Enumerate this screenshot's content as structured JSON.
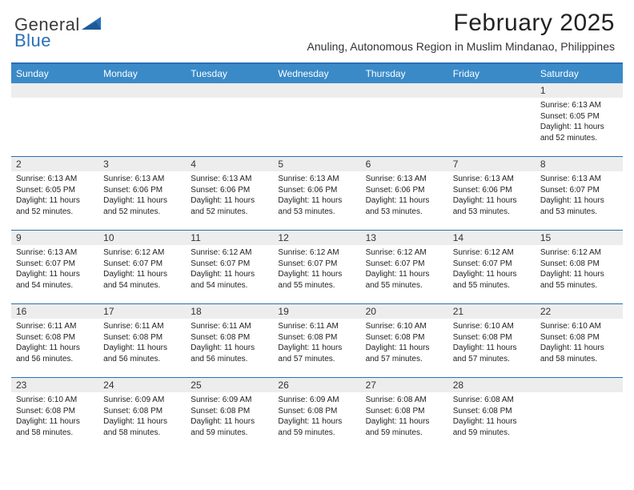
{
  "brand": {
    "part1": "General",
    "part2": "Blue"
  },
  "title": "February 2025",
  "subtitle": "Anuling, Autonomous Region in Muslim Mindanao, Philippines",
  "colors": {
    "header_bar": "#3a8ac8",
    "accent": "#2a6fb5",
    "day_strip": "#ededed",
    "text": "#222222"
  },
  "weekdays": [
    "Sunday",
    "Monday",
    "Tuesday",
    "Wednesday",
    "Thursday",
    "Friday",
    "Saturday"
  ],
  "weeks": [
    [
      null,
      null,
      null,
      null,
      null,
      null,
      {
        "n": "1",
        "sunrise": "Sunrise: 6:13 AM",
        "sunset": "Sunset: 6:05 PM",
        "daylight": "Daylight: 11 hours and 52 minutes."
      }
    ],
    [
      {
        "n": "2",
        "sunrise": "Sunrise: 6:13 AM",
        "sunset": "Sunset: 6:05 PM",
        "daylight": "Daylight: 11 hours and 52 minutes."
      },
      {
        "n": "3",
        "sunrise": "Sunrise: 6:13 AM",
        "sunset": "Sunset: 6:06 PM",
        "daylight": "Daylight: 11 hours and 52 minutes."
      },
      {
        "n": "4",
        "sunrise": "Sunrise: 6:13 AM",
        "sunset": "Sunset: 6:06 PM",
        "daylight": "Daylight: 11 hours and 52 minutes."
      },
      {
        "n": "5",
        "sunrise": "Sunrise: 6:13 AM",
        "sunset": "Sunset: 6:06 PM",
        "daylight": "Daylight: 11 hours and 53 minutes."
      },
      {
        "n": "6",
        "sunrise": "Sunrise: 6:13 AM",
        "sunset": "Sunset: 6:06 PM",
        "daylight": "Daylight: 11 hours and 53 minutes."
      },
      {
        "n": "7",
        "sunrise": "Sunrise: 6:13 AM",
        "sunset": "Sunset: 6:06 PM",
        "daylight": "Daylight: 11 hours and 53 minutes."
      },
      {
        "n": "8",
        "sunrise": "Sunrise: 6:13 AM",
        "sunset": "Sunset: 6:07 PM",
        "daylight": "Daylight: 11 hours and 53 minutes."
      }
    ],
    [
      {
        "n": "9",
        "sunrise": "Sunrise: 6:13 AM",
        "sunset": "Sunset: 6:07 PM",
        "daylight": "Daylight: 11 hours and 54 minutes."
      },
      {
        "n": "10",
        "sunrise": "Sunrise: 6:12 AM",
        "sunset": "Sunset: 6:07 PM",
        "daylight": "Daylight: 11 hours and 54 minutes."
      },
      {
        "n": "11",
        "sunrise": "Sunrise: 6:12 AM",
        "sunset": "Sunset: 6:07 PM",
        "daylight": "Daylight: 11 hours and 54 minutes."
      },
      {
        "n": "12",
        "sunrise": "Sunrise: 6:12 AM",
        "sunset": "Sunset: 6:07 PM",
        "daylight": "Daylight: 11 hours and 55 minutes."
      },
      {
        "n": "13",
        "sunrise": "Sunrise: 6:12 AM",
        "sunset": "Sunset: 6:07 PM",
        "daylight": "Daylight: 11 hours and 55 minutes."
      },
      {
        "n": "14",
        "sunrise": "Sunrise: 6:12 AM",
        "sunset": "Sunset: 6:07 PM",
        "daylight": "Daylight: 11 hours and 55 minutes."
      },
      {
        "n": "15",
        "sunrise": "Sunrise: 6:12 AM",
        "sunset": "Sunset: 6:08 PM",
        "daylight": "Daylight: 11 hours and 55 minutes."
      }
    ],
    [
      {
        "n": "16",
        "sunrise": "Sunrise: 6:11 AM",
        "sunset": "Sunset: 6:08 PM",
        "daylight": "Daylight: 11 hours and 56 minutes."
      },
      {
        "n": "17",
        "sunrise": "Sunrise: 6:11 AM",
        "sunset": "Sunset: 6:08 PM",
        "daylight": "Daylight: 11 hours and 56 minutes."
      },
      {
        "n": "18",
        "sunrise": "Sunrise: 6:11 AM",
        "sunset": "Sunset: 6:08 PM",
        "daylight": "Daylight: 11 hours and 56 minutes."
      },
      {
        "n": "19",
        "sunrise": "Sunrise: 6:11 AM",
        "sunset": "Sunset: 6:08 PM",
        "daylight": "Daylight: 11 hours and 57 minutes."
      },
      {
        "n": "20",
        "sunrise": "Sunrise: 6:10 AM",
        "sunset": "Sunset: 6:08 PM",
        "daylight": "Daylight: 11 hours and 57 minutes."
      },
      {
        "n": "21",
        "sunrise": "Sunrise: 6:10 AM",
        "sunset": "Sunset: 6:08 PM",
        "daylight": "Daylight: 11 hours and 57 minutes."
      },
      {
        "n": "22",
        "sunrise": "Sunrise: 6:10 AM",
        "sunset": "Sunset: 6:08 PM",
        "daylight": "Daylight: 11 hours and 58 minutes."
      }
    ],
    [
      {
        "n": "23",
        "sunrise": "Sunrise: 6:10 AM",
        "sunset": "Sunset: 6:08 PM",
        "daylight": "Daylight: 11 hours and 58 minutes."
      },
      {
        "n": "24",
        "sunrise": "Sunrise: 6:09 AM",
        "sunset": "Sunset: 6:08 PM",
        "daylight": "Daylight: 11 hours and 58 minutes."
      },
      {
        "n": "25",
        "sunrise": "Sunrise: 6:09 AM",
        "sunset": "Sunset: 6:08 PM",
        "daylight": "Daylight: 11 hours and 59 minutes."
      },
      {
        "n": "26",
        "sunrise": "Sunrise: 6:09 AM",
        "sunset": "Sunset: 6:08 PM",
        "daylight": "Daylight: 11 hours and 59 minutes."
      },
      {
        "n": "27",
        "sunrise": "Sunrise: 6:08 AM",
        "sunset": "Sunset: 6:08 PM",
        "daylight": "Daylight: 11 hours and 59 minutes."
      },
      {
        "n": "28",
        "sunrise": "Sunrise: 6:08 AM",
        "sunset": "Sunset: 6:08 PM",
        "daylight": "Daylight: 11 hours and 59 minutes."
      },
      null
    ]
  ]
}
